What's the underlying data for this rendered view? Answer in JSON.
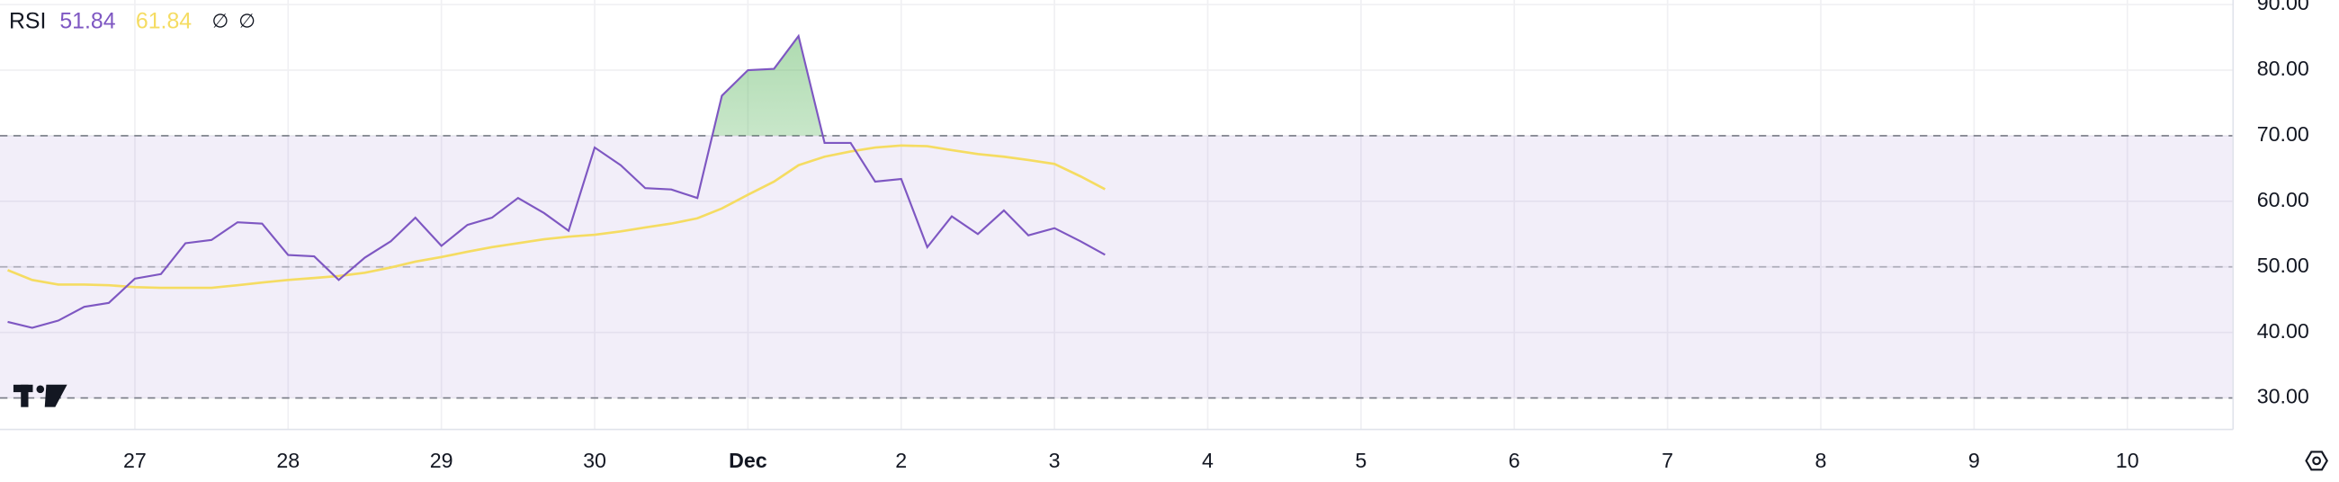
{
  "chart_data": {
    "type": "line",
    "title": "RSI",
    "status_marks": [
      "∅",
      "∅"
    ],
    "x": [
      26.17,
      26.33,
      26.5,
      26.67,
      26.83,
      27,
      27.17,
      27.33,
      27.5,
      27.67,
      27.83,
      28,
      28.17,
      28.33,
      28.5,
      28.67,
      28.83,
      29,
      29.17,
      29.33,
      29.5,
      29.67,
      29.83,
      30,
      30.17,
      30.33,
      30.5,
      30.67,
      30.83,
      31,
      31.17,
      31.33,
      31.5,
      31.67,
      31.83,
      32,
      32.17,
      32.33,
      32.5,
      32.67,
      32.83,
      33,
      33.17,
      33.33
    ],
    "series": [
      {
        "color": "#7e57c2",
        "values": [
          41.6,
          40.7,
          41.8,
          43.9,
          44.5,
          48.2,
          48.9,
          53.6,
          54.1,
          56.8,
          56.6,
          51.8,
          51.6,
          48.0,
          51.4,
          53.9,
          57.5,
          53.2,
          56.4,
          57.5,
          60.5,
          58.2,
          55.5,
          68.2,
          65.5,
          62.0,
          61.8,
          60.5,
          76.1,
          80.0,
          80.2,
          85.2,
          68.9,
          68.9,
          63.0,
          63.4,
          53.0,
          57.7,
          55.0,
          58.6,
          54.8,
          55.9,
          53.9,
          51.84
        ]
      },
      {
        "color": "#f5dc62",
        "values": [
          49.5,
          48.0,
          47.3,
          47.3,
          47.2,
          46.9,
          46.8,
          46.8,
          46.8,
          47.2,
          47.6,
          48.0,
          48.3,
          48.6,
          49.1,
          49.9,
          50.8,
          51.5,
          52.3,
          53.0,
          53.6,
          54.2,
          54.6,
          54.9,
          55.4,
          56.0,
          56.6,
          57.4,
          58.9,
          61.0,
          63.0,
          65.5,
          66.8,
          67.6,
          68.2,
          68.5,
          68.4,
          67.8,
          67.2,
          66.8,
          66.3,
          65.7,
          63.8,
          61.84
        ]
      }
    ],
    "bands": {
      "upper": 70,
      "middle": 50,
      "lower": 30
    },
    "band_color": "#7e57c2",
    "overbought_color": "#4caf50",
    "xlim": [
      26.12,
      40.69
    ],
    "xticks": [
      27,
      28,
      29,
      30,
      {
        "value": 31,
        "label": "Dec"
      },
      {
        "value": 32,
        "label": "2"
      },
      {
        "value": 33,
        "label": "3"
      },
      {
        "value": 34,
        "label": "4"
      },
      {
        "value": 35,
        "label": "5"
      },
      {
        "value": 36,
        "label": "6"
      },
      {
        "value": 37,
        "label": "7"
      },
      {
        "value": 38,
        "label": "8"
      },
      {
        "value": 39,
        "label": "9"
      },
      {
        "value": 40,
        "label": "10"
      }
    ],
    "ylim": [
      25.2,
      90.7
    ],
    "yticks": [
      {
        "value": 30,
        "label": "30.00"
      },
      {
        "value": 40,
        "label": "40.00"
      },
      {
        "value": 50,
        "label": "50.00"
      },
      {
        "value": 60,
        "label": "60.00"
      },
      {
        "value": 70,
        "label": "70.00"
      },
      {
        "value": 80,
        "label": "80.00"
      },
      {
        "value": 90,
        "label": "90.00"
      }
    ],
    "grid": true
  }
}
